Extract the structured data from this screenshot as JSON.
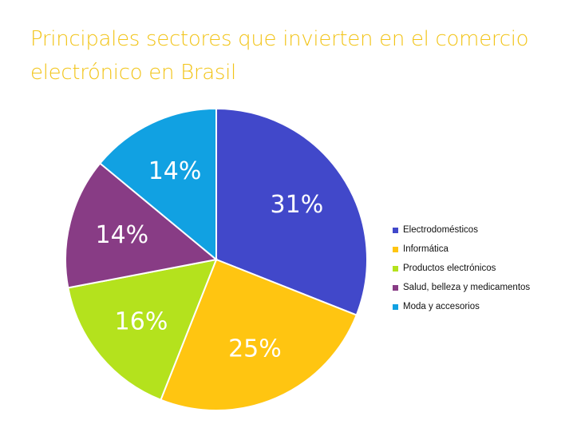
{
  "chart_data": {
    "type": "pie",
    "title_lines": [
      "Principales sectores que invierten en el comercio",
      "electrónico en Brasil"
    ],
    "categories": [
      "Electrodomésticos",
      "Informática",
      "Productos electrónicos",
      "Salud, belleza y medicamentos",
      "Moda y accesorios"
    ],
    "values": [
      31,
      25,
      16,
      14,
      14
    ],
    "value_labels": [
      "31%",
      "25%",
      "16%",
      "14%",
      "14%"
    ],
    "colors": [
      "#4148ca",
      "#ffc511",
      "#b4e21d",
      "#883c85",
      "#11a1e2"
    ],
    "title_color": "#f2c418",
    "legend_position": "right"
  }
}
